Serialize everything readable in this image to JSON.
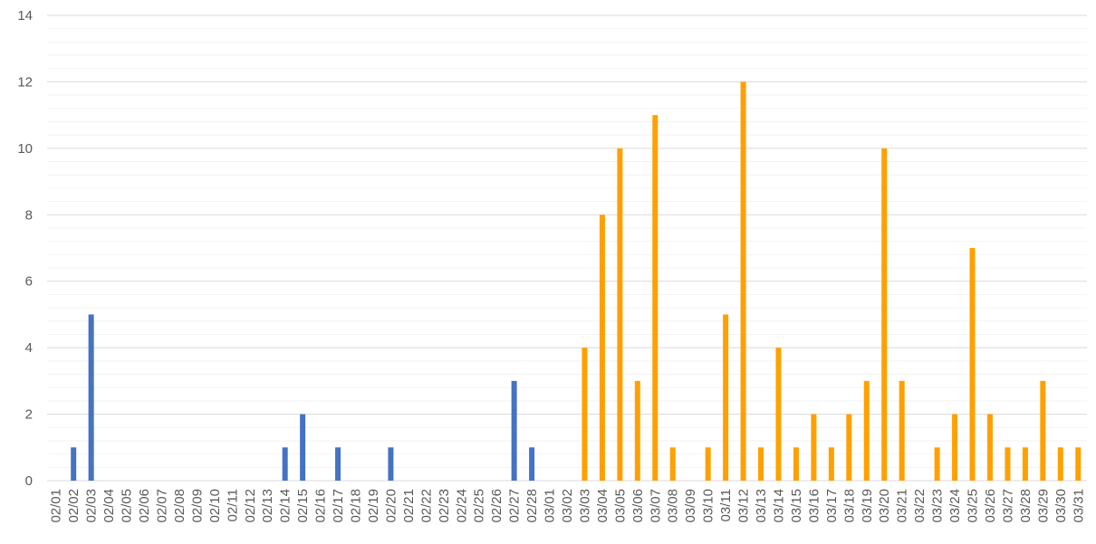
{
  "chart_data": {
    "type": "bar",
    "categories": [
      "02/01",
      "02/02",
      "02/03",
      "02/04",
      "02/05",
      "02/06",
      "02/07",
      "02/08",
      "02/09",
      "02/10",
      "02/11",
      "02/12",
      "02/13",
      "02/14",
      "02/15",
      "02/16",
      "02/17",
      "02/18",
      "02/19",
      "02/20",
      "02/21",
      "02/22",
      "02/23",
      "02/24",
      "02/25",
      "02/26",
      "02/27",
      "02/28",
      "03/01",
      "03/02",
      "03/03",
      "03/04",
      "03/05",
      "03/06",
      "03/07",
      "03/08",
      "03/09",
      "03/10",
      "03/11",
      "03/12",
      "03/13",
      "03/14",
      "03/15",
      "03/16",
      "03/17",
      "03/18",
      "03/19",
      "03/20",
      "03/21",
      "03/22",
      "03/23",
      "03/24",
      "03/25",
      "03/26",
      "03/27",
      "03/28",
      "03/29",
      "03/30",
      "03/31"
    ],
    "series": [
      {
        "color": "#4472c4",
        "values": [
          0,
          1,
          5,
          0,
          0,
          0,
          0,
          0,
          0,
          0,
          0,
          0,
          0,
          1,
          2,
          0,
          1,
          0,
          0,
          1,
          0,
          0,
          0,
          0,
          0,
          0,
          3,
          1,
          null,
          null,
          null,
          null,
          null,
          null,
          null,
          null,
          null,
          null,
          null,
          null,
          null,
          null,
          null,
          null,
          null,
          null,
          null,
          null,
          null,
          null,
          null,
          null,
          null,
          null,
          null,
          null,
          null,
          null,
          null
        ]
      },
      {
        "color": "#ffa000",
        "values": [
          null,
          null,
          null,
          null,
          null,
          null,
          null,
          null,
          null,
          null,
          null,
          null,
          null,
          null,
          null,
          null,
          null,
          null,
          null,
          null,
          null,
          null,
          null,
          null,
          null,
          null,
          null,
          null,
          0,
          0,
          4,
          8,
          10,
          3,
          11,
          1,
          0,
          1,
          5,
          12,
          1,
          4,
          1,
          2,
          1,
          2,
          3,
          10,
          3,
          0,
          1,
          2,
          7,
          2,
          1,
          1,
          3,
          1,
          1
        ]
      }
    ],
    "ylim": [
      0,
      14
    ],
    "yticks": [
      0,
      2,
      4,
      6,
      8,
      10,
      12,
      14
    ],
    "grid": true,
    "minor_grid_divisions": 5
  }
}
